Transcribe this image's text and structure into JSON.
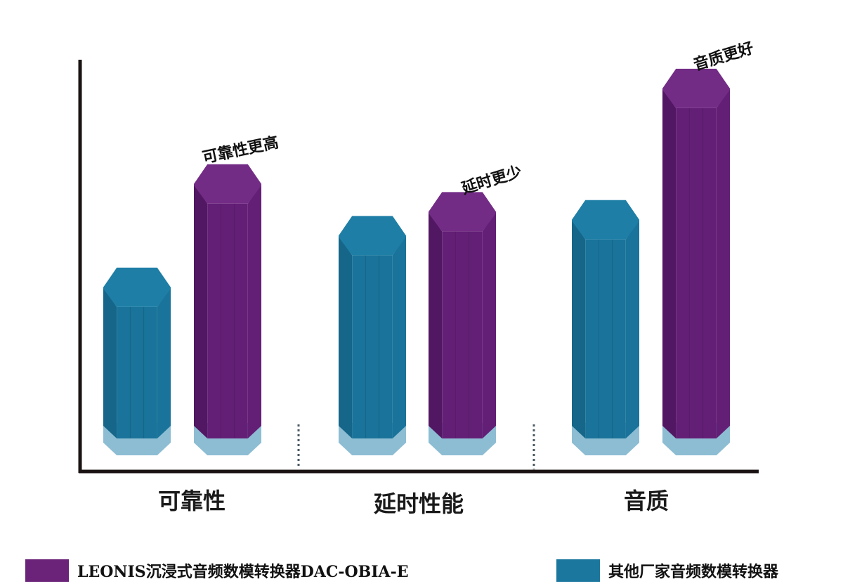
{
  "chart_data": {
    "type": "bar",
    "title": "",
    "xlabel": "",
    "ylabel": "",
    "categories": [
      "可靠性",
      "延时性能",
      "音质"
    ],
    "ylim": [
      0,
      100
    ],
    "grid": false,
    "legend_position": "bottom",
    "series": [
      {
        "name": "其他厂家音频数模转换器",
        "values": [
          38,
          51,
          55
        ]
      },
      {
        "name": "LEONIS沉浸式音频数模转换器DAC-OBIA-E",
        "values": [
          64,
          57,
          88
        ]
      }
    ],
    "annotations": [
      "可靠性更高",
      "延时更少",
      "音质更好"
    ]
  },
  "colors": {
    "other_top": "#1e7ea6",
    "other_front": "#19739a",
    "other_side": "#156689",
    "other_base": "#8dbdd3",
    "leonis_top": "#732c86",
    "leonis_front": "#631f76",
    "leonis_side": "#521763",
    "leonis_base": "#8dbdd3",
    "axis": "#1a1212",
    "separator": "#4a5a63"
  }
}
